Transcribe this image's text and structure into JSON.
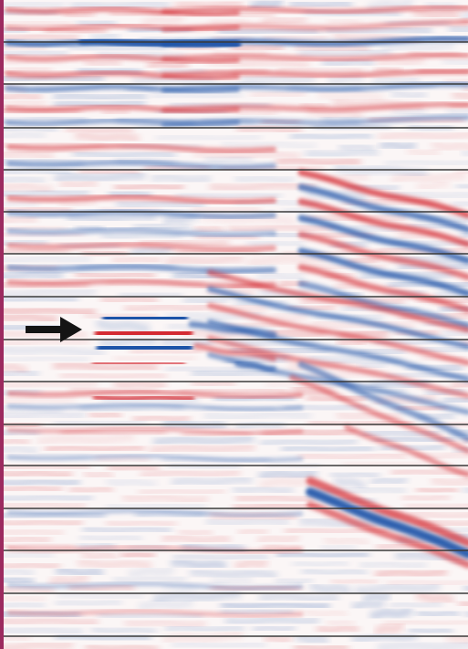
{
  "image": {
    "kind": "seismic-section",
    "colors": {
      "positive": "#d42a30",
      "negative": "#1f52a8",
      "background": "#fbf6f6",
      "left_border": "#9c2a5f",
      "horizontal_lines": "#3a3a3a",
      "arrow": "#141414"
    },
    "annotation_icon": "arrow-right-icon"
  }
}
